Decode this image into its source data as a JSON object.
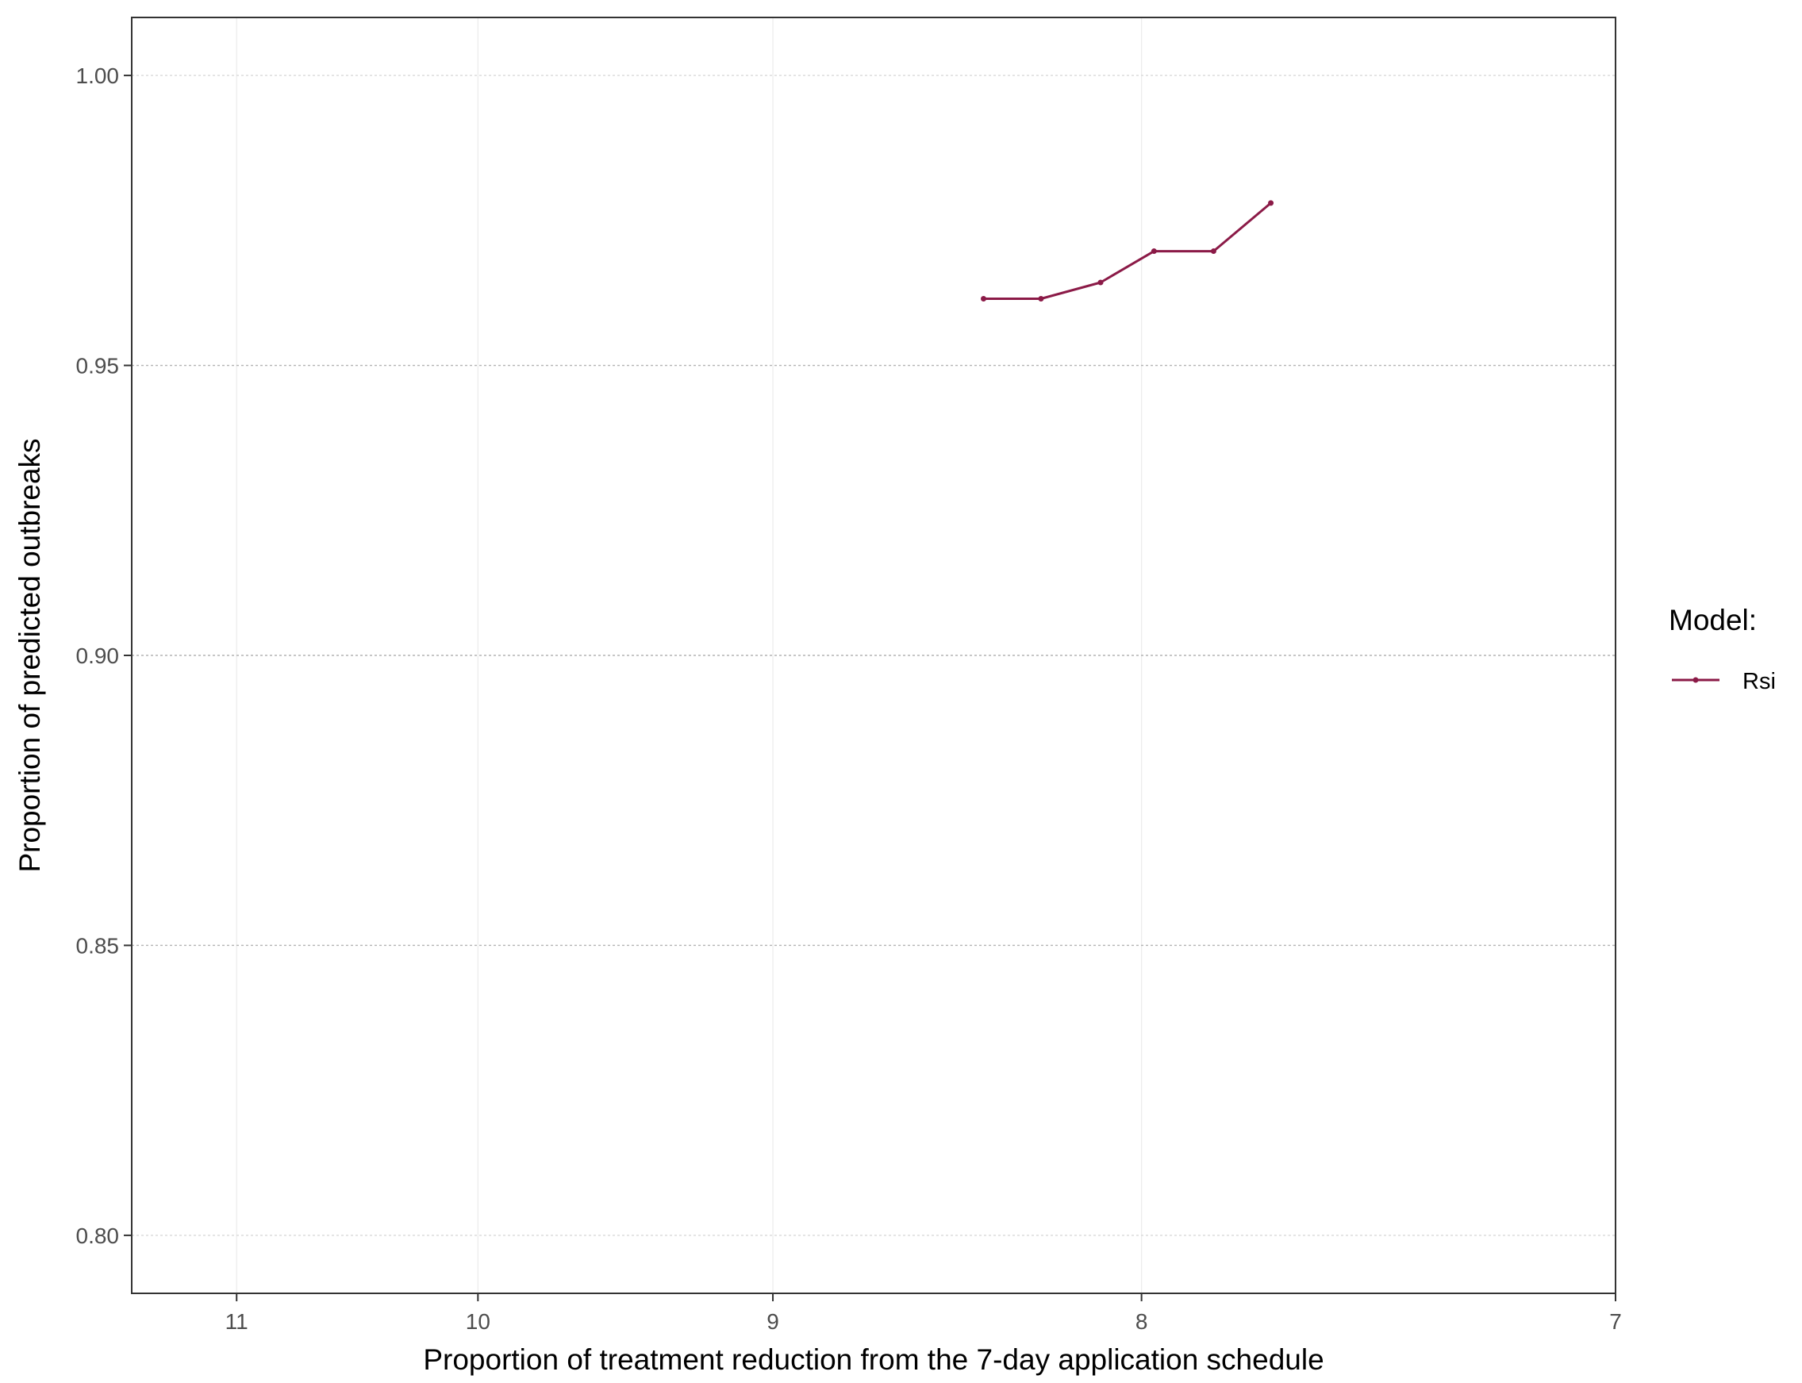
{
  "chart_data": {
    "type": "line",
    "x_scale": "reciprocal",
    "xlabel": "Proportion of treatment reduction from the 7-day application schedule",
    "ylabel": "Proportion of predicted outbreaks",
    "xlim": [
      11.5,
      7
    ],
    "ylim": [
      0.79,
      1.01
    ],
    "x_ticks": [
      11,
      10,
      9,
      8,
      7
    ],
    "x_tick_labels": [
      "11",
      "10",
      "9",
      "8",
      "7"
    ],
    "y_ticks": [
      0.8,
      0.85,
      0.9,
      0.95,
      1.0
    ],
    "y_tick_labels": [
      "0.80",
      "0.85",
      "0.90",
      "0.95",
      "1.00"
    ],
    "grid": true,
    "legend": {
      "title": "Model:",
      "position": "right"
    },
    "series": [
      {
        "name": "Rsi",
        "color": "#8B1A47",
        "x": [
          8.4,
          8.25,
          8.1,
          7.97,
          7.83,
          7.7
        ],
        "y": [
          0.9615,
          0.9615,
          0.9643,
          0.9697,
          0.9697,
          0.978
        ]
      }
    ]
  }
}
